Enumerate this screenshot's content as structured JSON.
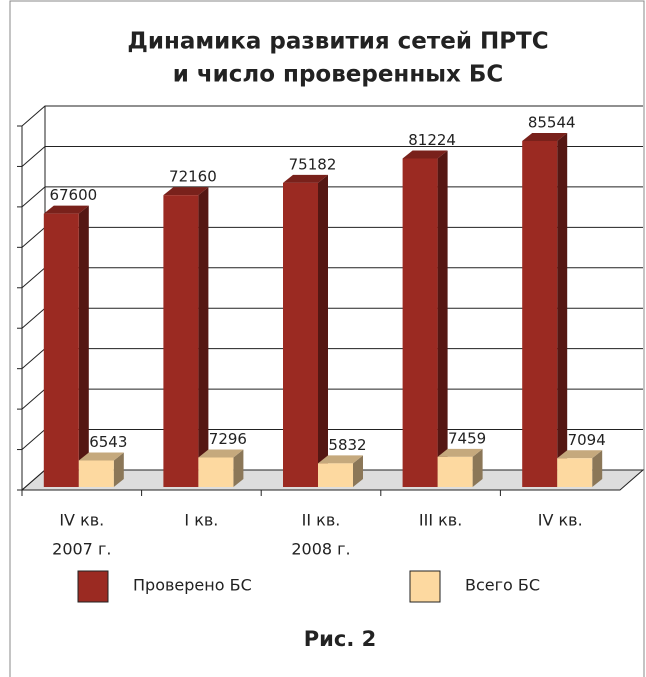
{
  "chart_data": {
    "type": "bar3d",
    "title": [
      "Динамика развития сетей ПРТС",
      "и число проверенных БС"
    ],
    "categories": [
      "IV кв.",
      "I кв.",
      "II кв.",
      "III кв.",
      "IV кв."
    ],
    "category_groups": [
      "2007 г.",
      "2008 г."
    ],
    "series": [
      {
        "name": "Проверено БС",
        "color": "#9b2a22",
        "values": [
          67600,
          72160,
          75182,
          81224,
          85544
        ]
      },
      {
        "name": "Всего БС",
        "color": "#fdd9a0",
        "values": [
          6543,
          7296,
          5832,
          7459,
          7094
        ]
      }
    ],
    "ylim": [
      0,
      90000
    ],
    "yticks": [
      0,
      10000,
      20000,
      30000,
      40000,
      50000,
      60000,
      70000,
      80000,
      90000
    ],
    "grid": true,
    "caption": "Рис. 2"
  }
}
